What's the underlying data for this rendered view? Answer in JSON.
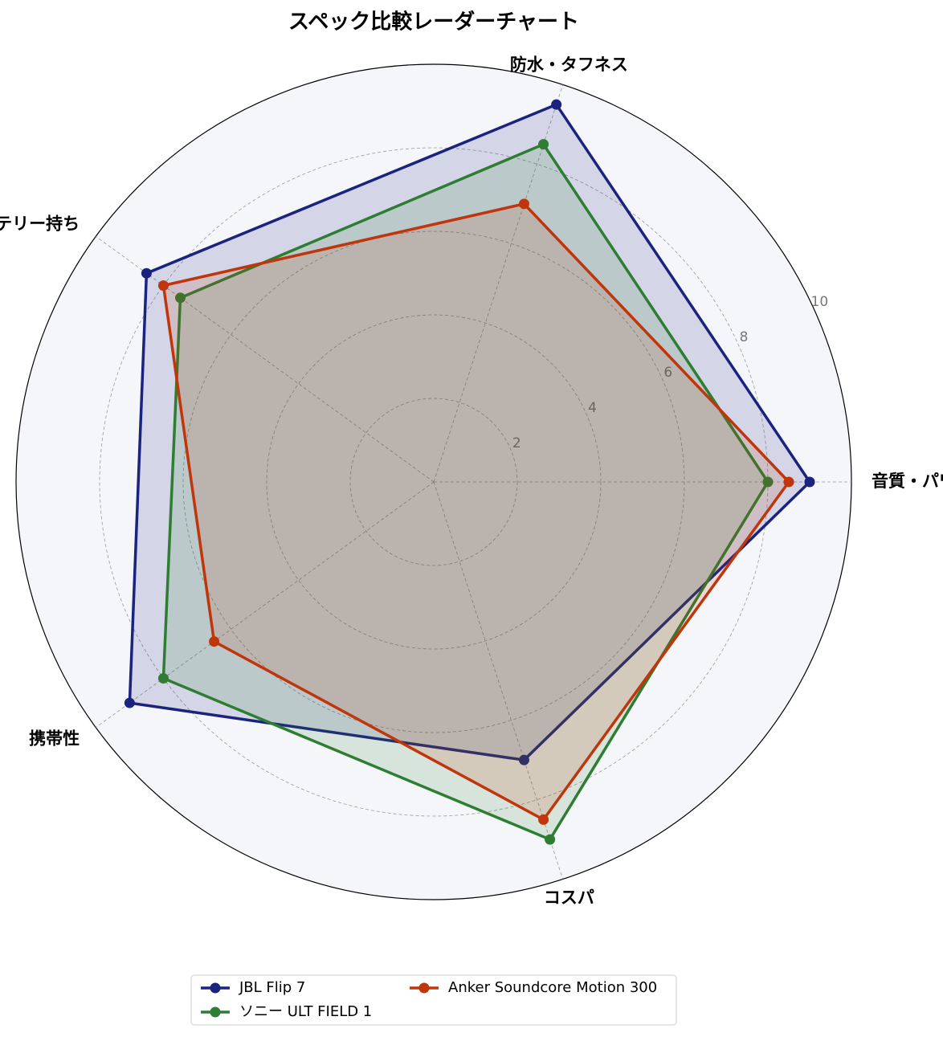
{
  "chart_data": {
    "type": "radar",
    "title": "スペック比較レーダーチャート",
    "categories": [
      "音質・パワー",
      "防水・タフネス",
      "バッテリー持ち",
      "携帯性",
      "コスパ"
    ],
    "rlim": [
      0,
      10
    ],
    "rticks": [
      2,
      4,
      6,
      8,
      10
    ],
    "grid": true,
    "legend": "bottom",
    "series": [
      {
        "name": "JBL Flip 7",
        "color": "#1a237e",
        "values": [
          9,
          9.5,
          8.5,
          9,
          7
        ]
      },
      {
        "name": "ソニー ULT FIELD 1",
        "color": "#2e7d32",
        "values": [
          8,
          8.5,
          7.5,
          8,
          9
        ]
      },
      {
        "name": "Anker Soundcore Motion 300",
        "color": "#bf360c",
        "values": [
          8.5,
          7,
          8,
          6.5,
          8.5
        ]
      }
    ]
  }
}
